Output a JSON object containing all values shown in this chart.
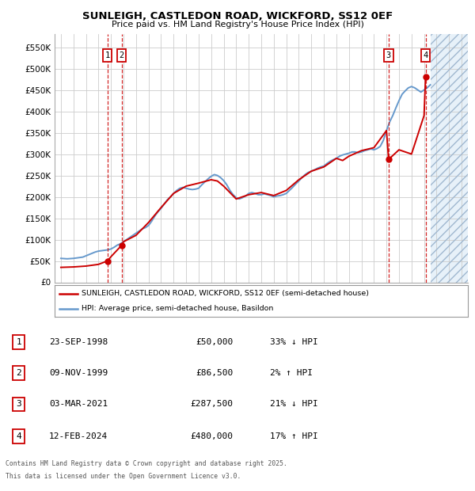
{
  "title": "SUNLEIGH, CASTLEDON ROAD, WICKFORD, SS12 0EF",
  "subtitle": "Price paid vs. HM Land Registry's House Price Index (HPI)",
  "legend_label_red": "SUNLEIGH, CASTLEDON ROAD, WICKFORD, SS12 0EF (semi-detached house)",
  "legend_label_blue": "HPI: Average price, semi-detached house, Basildon",
  "footer1": "Contains HM Land Registry data © Crown copyright and database right 2025.",
  "footer2": "This data is licensed under the Open Government Licence v3.0.",
  "ylim": [
    0,
    580000
  ],
  "yticks": [
    0,
    50000,
    100000,
    150000,
    200000,
    250000,
    300000,
    350000,
    400000,
    450000,
    500000,
    550000
  ],
  "ytick_labels": [
    "£0",
    "£50K",
    "£100K",
    "£150K",
    "£200K",
    "£250K",
    "£300K",
    "£350K",
    "£400K",
    "£450K",
    "£500K",
    "£550K"
  ],
  "xlim_start": 1994.5,
  "xlim_end": 2027.5,
  "transactions": [
    {
      "num": 1,
      "date": "23-SEP-1998",
      "price": 50000,
      "year": 1998.72,
      "pct": "33%",
      "dir": "↓",
      "label": "33% ↓ HPI"
    },
    {
      "num": 2,
      "date": "09-NOV-1999",
      "price": 86500,
      "year": 1999.85,
      "pct": "2%",
      "dir": "↑",
      "label": "2% ↑ HPI"
    },
    {
      "num": 3,
      "date": "03-MAR-2021",
      "price": 287500,
      "year": 2021.17,
      "pct": "21%",
      "dir": "↓",
      "label": "21% ↓ HPI"
    },
    {
      "num": 4,
      "date": "12-FEB-2024",
      "price": 480000,
      "year": 2024.12,
      "pct": "17%",
      "dir": "↑",
      "label": "17% ↑ HPI"
    }
  ],
  "hpi_data_x": [
    1995.0,
    1995.25,
    1995.5,
    1995.75,
    1996.0,
    1996.25,
    1996.5,
    1996.75,
    1997.0,
    1997.25,
    1997.5,
    1997.75,
    1998.0,
    1998.25,
    1998.5,
    1998.75,
    1999.0,
    1999.25,
    1999.5,
    1999.75,
    2000.0,
    2000.25,
    2000.5,
    2000.75,
    2001.0,
    2001.25,
    2001.5,
    2001.75,
    2002.0,
    2002.25,
    2002.5,
    2002.75,
    2003.0,
    2003.25,
    2003.5,
    2003.75,
    2004.0,
    2004.25,
    2004.5,
    2004.75,
    2005.0,
    2005.25,
    2005.5,
    2005.75,
    2006.0,
    2006.25,
    2006.5,
    2006.75,
    2007.0,
    2007.25,
    2007.5,
    2007.75,
    2008.0,
    2008.25,
    2008.5,
    2008.75,
    2009.0,
    2009.25,
    2009.5,
    2009.75,
    2010.0,
    2010.25,
    2010.5,
    2010.75,
    2011.0,
    2011.25,
    2011.5,
    2011.75,
    2012.0,
    2012.25,
    2012.5,
    2012.75,
    2013.0,
    2013.25,
    2013.5,
    2013.75,
    2014.0,
    2014.25,
    2014.5,
    2014.75,
    2015.0,
    2015.25,
    2015.5,
    2015.75,
    2016.0,
    2016.25,
    2016.5,
    2016.75,
    2017.0,
    2017.25,
    2017.5,
    2017.75,
    2018.0,
    2018.25,
    2018.5,
    2018.75,
    2019.0,
    2019.25,
    2019.5,
    2019.75,
    2020.0,
    2020.25,
    2020.5,
    2020.75,
    2021.0,
    2021.25,
    2021.5,
    2021.75,
    2022.0,
    2022.25,
    2022.5,
    2022.75,
    2023.0,
    2023.25,
    2023.5,
    2023.75,
    2024.0,
    2024.25,
    2024.5
  ],
  "hpi_data_y": [
    56000,
    55500,
    55000,
    55500,
    56000,
    57000,
    58000,
    59000,
    62000,
    65000,
    68000,
    71000,
    73000,
    74000,
    75000,
    76000,
    78000,
    82000,
    87000,
    90000,
    95000,
    100000,
    105000,
    110000,
    115000,
    120000,
    125000,
    128000,
    133000,
    143000,
    155000,
    165000,
    173000,
    183000,
    193000,
    200000,
    208000,
    215000,
    220000,
    222000,
    220000,
    218000,
    217000,
    218000,
    220000,
    228000,
    235000,
    242000,
    248000,
    252000,
    250000,
    245000,
    238000,
    228000,
    215000,
    205000,
    198000,
    195000,
    198000,
    202000,
    208000,
    210000,
    208000,
    205000,
    205000,
    207000,
    205000,
    203000,
    200000,
    202000,
    203000,
    205000,
    208000,
    215000,
    222000,
    230000,
    237000,
    245000,
    252000,
    257000,
    260000,
    263000,
    267000,
    270000,
    272000,
    278000,
    283000,
    287000,
    290000,
    295000,
    298000,
    300000,
    302000,
    305000,
    305000,
    303000,
    305000,
    308000,
    310000,
    312000,
    310000,
    313000,
    318000,
    332000,
    355000,
    375000,
    390000,
    408000,
    425000,
    440000,
    448000,
    455000,
    458000,
    455000,
    450000,
    445000,
    450000,
    455000,
    462000
  ],
  "price_data_x": [
    1995.0,
    1996.0,
    1997.0,
    1998.0,
    1998.72,
    1999.0,
    1999.85,
    2000.0,
    2001.0,
    2002.0,
    2003.0,
    2004.0,
    2005.0,
    2006.0,
    2007.0,
    2007.5,
    2008.0,
    2009.0,
    2010.0,
    2011.0,
    2012.0,
    2013.0,
    2014.0,
    2015.0,
    2016.0,
    2017.0,
    2017.5,
    2018.0,
    2019.0,
    2020.0,
    2021.0,
    2021.17,
    2022.0,
    2023.0,
    2024.0,
    2024.12
  ],
  "price_data_y": [
    35000,
    36000,
    38000,
    42000,
    50000,
    60000,
    86500,
    95000,
    110000,
    140000,
    175000,
    208000,
    225000,
    232000,
    240000,
    237000,
    225000,
    195000,
    205000,
    210000,
    203000,
    215000,
    240000,
    260000,
    270000,
    290000,
    285000,
    295000,
    308000,
    315000,
    355000,
    287500,
    310000,
    300000,
    390000,
    480000
  ],
  "hatch_start": 2024.5,
  "bg_color": "#ffffff",
  "grid_color": "#cccccc",
  "red_color": "#cc0000",
  "blue_color": "#6699cc",
  "hatch_color": "#ddeeff"
}
